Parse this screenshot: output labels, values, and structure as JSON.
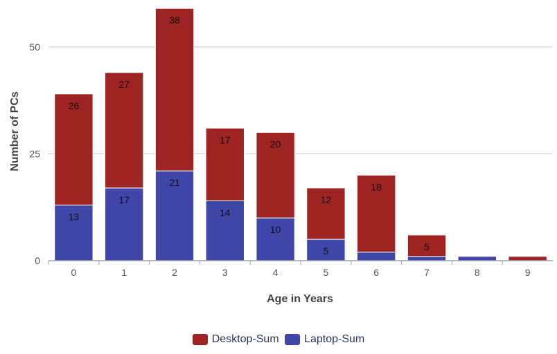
{
  "chart_data": {
    "type": "bar",
    "stacked": true,
    "xlabel": "Age in Years",
    "ylabel": "Number of PCs",
    "categories": [
      "0",
      "1",
      "2",
      "3",
      "4",
      "5",
      "6",
      "7",
      "8",
      "9"
    ],
    "ylim": [
      0,
      60
    ],
    "yticks": [
      0,
      25,
      50
    ],
    "grid": true,
    "legend_position": "bottom",
    "series": [
      {
        "name": "Laptop-Sum",
        "color": "#4046a8",
        "values": [
          13,
          17,
          21,
          14,
          10,
          5,
          2,
          1,
          1,
          0
        ],
        "labels": [
          "13",
          "17",
          "21",
          "14",
          "10",
          "5",
          "",
          "",
          "",
          ""
        ]
      },
      {
        "name": "Desktop-Sum",
        "color": "#9e2323",
        "values": [
          26,
          27,
          38,
          17,
          20,
          12,
          18,
          5,
          0,
          1
        ],
        "labels": [
          "26",
          "27",
          "38",
          "17",
          "20",
          "12",
          "18",
          "5",
          "",
          ""
        ]
      }
    ],
    "legend_order": [
      "Desktop-Sum",
      "Laptop-Sum"
    ]
  }
}
